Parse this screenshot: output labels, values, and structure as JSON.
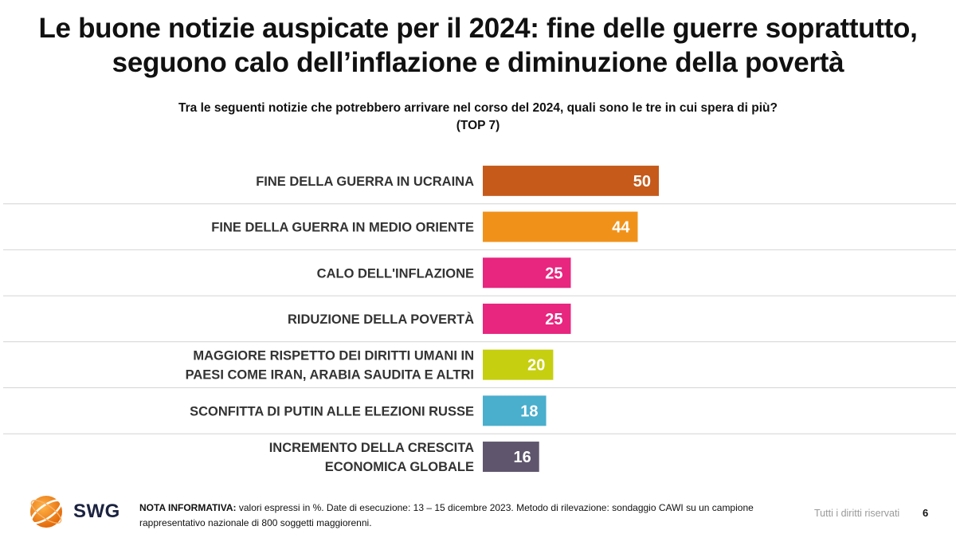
{
  "header": {
    "title_line1": "Le buone notizie auspicate per il 2024: fine delle guerre soprattutto,",
    "title_line2": "seguono calo dell’inflazione e diminuzione della povertà",
    "subtitle_line1": "Tra le seguenti notizie che potrebbero arrivare nel corso del 2024, quali sono le tre in cui spera di più?",
    "subtitle_line2": "(TOP 7)"
  },
  "chart_data": {
    "type": "bar",
    "orientation": "horizontal",
    "title": "Tra le seguenti notizie che potrebbero arrivare nel corso del 2024, quali sono le tre in cui spera di più?",
    "subtitle": "(TOP 7)",
    "xlabel": "",
    "ylabel": "",
    "xlim": [
      0,
      100
    ],
    "unit": "%",
    "categories": [
      [
        "FINE DELLA GUERRA IN UCRAINA"
      ],
      [
        "FINE DELLA GUERRA IN MEDIO ORIENTE"
      ],
      [
        "CALO DELL'INFLAZIONE"
      ],
      [
        "RIDUZIONE DELLA POVERTÀ"
      ],
      [
        "MAGGIORE RISPETTO DEI DIRITTI UMANI IN",
        "PAESI COME IRAN, ARABIA SAUDITA E ALTRI"
      ],
      [
        "SCONFITTA DI PUTIN ALLE ELEZIONI RUSSE"
      ],
      [
        "INCREMENTO DELLA CRESCITA",
        "ECONOMICA GLOBALE"
      ]
    ],
    "values": [
      50,
      44,
      25,
      25,
      20,
      18,
      16
    ],
    "colors": [
      "#c55a1b",
      "#f0921a",
      "#e8257f",
      "#e8257f",
      "#c6cf10",
      "#4aaecd",
      "#5f566e"
    ]
  },
  "footer": {
    "logo_text": "SWG",
    "note_label": "NOTA INFORMATIVA:",
    "note_text": " valori espressi in %. Date di esecuzione: 13 – 15 dicembre 2023. Metodo di rilevazione: sondaggio CAWI su un campione rappresentativo nazionale di 800 soggetti maggiorenni.",
    "rights": "Tutti i diritti riservati",
    "page_number": "6"
  }
}
